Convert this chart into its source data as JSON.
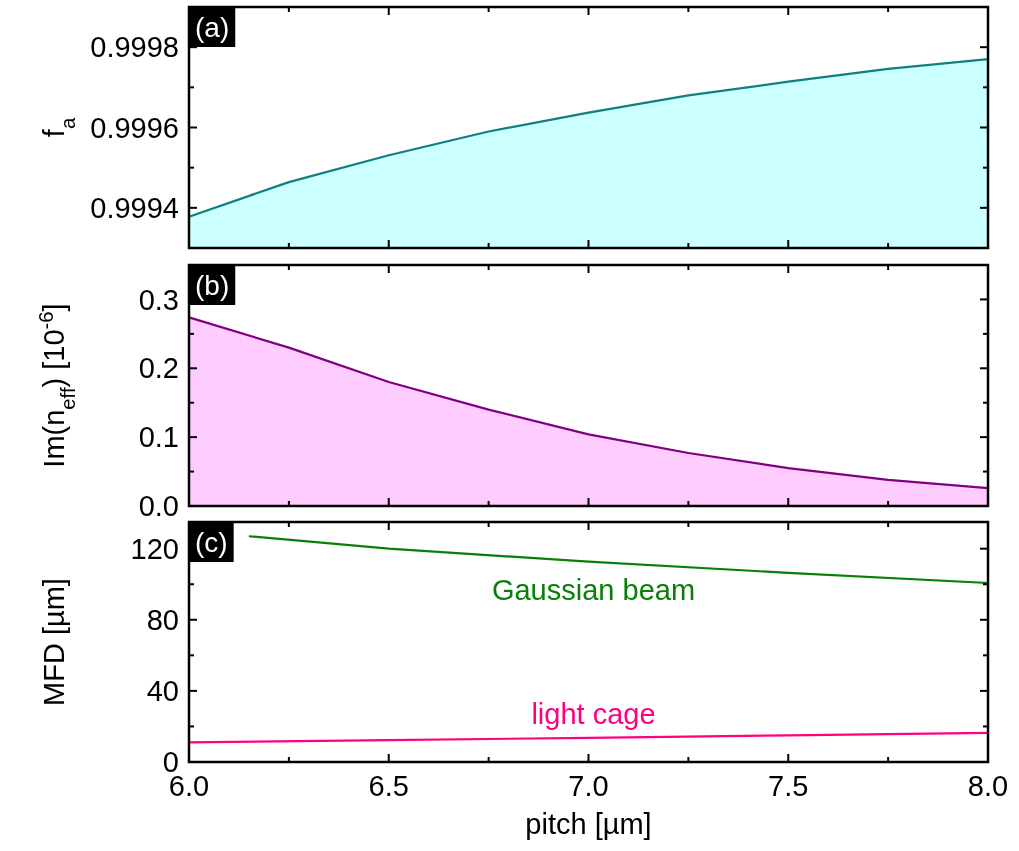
{
  "chart_data": [
    {
      "type": "area",
      "title": "(a)",
      "ylabel": "f$_{a}$",
      "x": [
        6.0,
        6.25,
        6.5,
        6.75,
        7.0,
        7.25,
        7.5,
        7.75,
        8.0
      ],
      "series": [
        {
          "color": "#0e8080",
          "values": [
            0.999378,
            0.999464,
            0.999531,
            0.99959,
            0.999637,
            0.99968,
            0.999714,
            0.999746,
            0.99977
          ]
        }
      ],
      "xlim": [
        6.0,
        8.0
      ],
      "xticks": [
        6.0,
        {
          "value": 6.25,
          "label": null
        },
        6.5,
        {
          "value": 6.75,
          "label": null
        },
        7.0,
        {
          "value": 7.25,
          "label": null
        },
        7.5,
        {
          "value": 7.75,
          "label": null
        },
        8.0
      ],
      "ylim": [
        0.9993,
        0.9999
      ],
      "yticks": [
        {
          "value": 0.9993,
          "label": null
        },
        0.9994,
        {
          "value": 0.9995,
          "label": null
        },
        0.9996,
        {
          "value": 0.9997,
          "label": null
        },
        0.9998,
        {
          "value": 0.9999,
          "label": null
        }
      ],
      "tick_labels": "y",
      "grid": false
    },
    {
      "type": "area",
      "title": "(b)",
      "ylabel": "Im(n$_{eff}$) [10$^{-6}$]",
      "x": [
        6.0,
        6.25,
        6.5,
        6.75,
        7.0,
        7.25,
        7.5,
        7.75,
        8.0
      ],
      "series": [
        {
          "color": "#800080",
          "values": [
            0.274,
            0.23,
            0.18,
            0.14,
            0.104,
            0.077,
            0.055,
            0.038,
            0.026
          ]
        }
      ],
      "xlim": [
        6.0,
        8.0
      ],
      "xticks": [
        6.0,
        {
          "value": 6.25,
          "label": null
        },
        6.5,
        {
          "value": 6.75,
          "label": null
        },
        7.0,
        {
          "value": 7.25,
          "label": null
        },
        7.5,
        {
          "value": 7.75,
          "label": null
        },
        8.0
      ],
      "ylim": [
        0,
        0.35
      ],
      "yticks": [
        {
          "value": 0.0,
          "label": "0.0"
        },
        {
          "value": 0.05,
          "label": null
        },
        0.1,
        {
          "value": 0.15,
          "label": null
        },
        0.2,
        {
          "value": 0.25,
          "label": null
        },
        0.3
      ],
      "tick_labels": "y",
      "grid": false
    },
    {
      "type": "line",
      "title": "(c)",
      "ylabel": "MFD [µm]",
      "xlabel": "pitch [µm]",
      "x": [
        6.0,
        6.5,
        7.0,
        7.5,
        8.0
      ],
      "series": [
        {
          "name": "Gaussian beam",
          "color": "#088008",
          "x": [
            6.15,
            6.5,
            7.0,
            7.5,
            8.0
          ],
          "values": [
            127,
            120,
            112.7,
            106.4,
            100.7
          ]
        },
        {
          "name": "light cage",
          "color": "#ff0080",
          "values": [
            11,
            12.3,
            13.6,
            15,
            16.4
          ]
        }
      ],
      "xlim": [
        6.0,
        8.0
      ],
      "xticks": [
        {
          "value": 6.0,
          "label": "6.0"
        },
        {
          "value": 6.25,
          "label": null
        },
        6.5,
        {
          "value": 6.75,
          "label": null
        },
        {
          "value": 7.0,
          "label": "7.0"
        },
        {
          "value": 7.25,
          "label": null
        },
        7.5,
        {
          "value": 7.75,
          "label": null
        },
        {
          "value": 8.0,
          "label": "8.0"
        }
      ],
      "ylim": [
        0,
        135
      ],
      "yticks": [
        0,
        {
          "value": 20,
          "label": null
        },
        40,
        {
          "value": 60,
          "label": null
        },
        80,
        {
          "value": 100,
          "label": null
        },
        120
      ],
      "grid": false
    }
  ]
}
